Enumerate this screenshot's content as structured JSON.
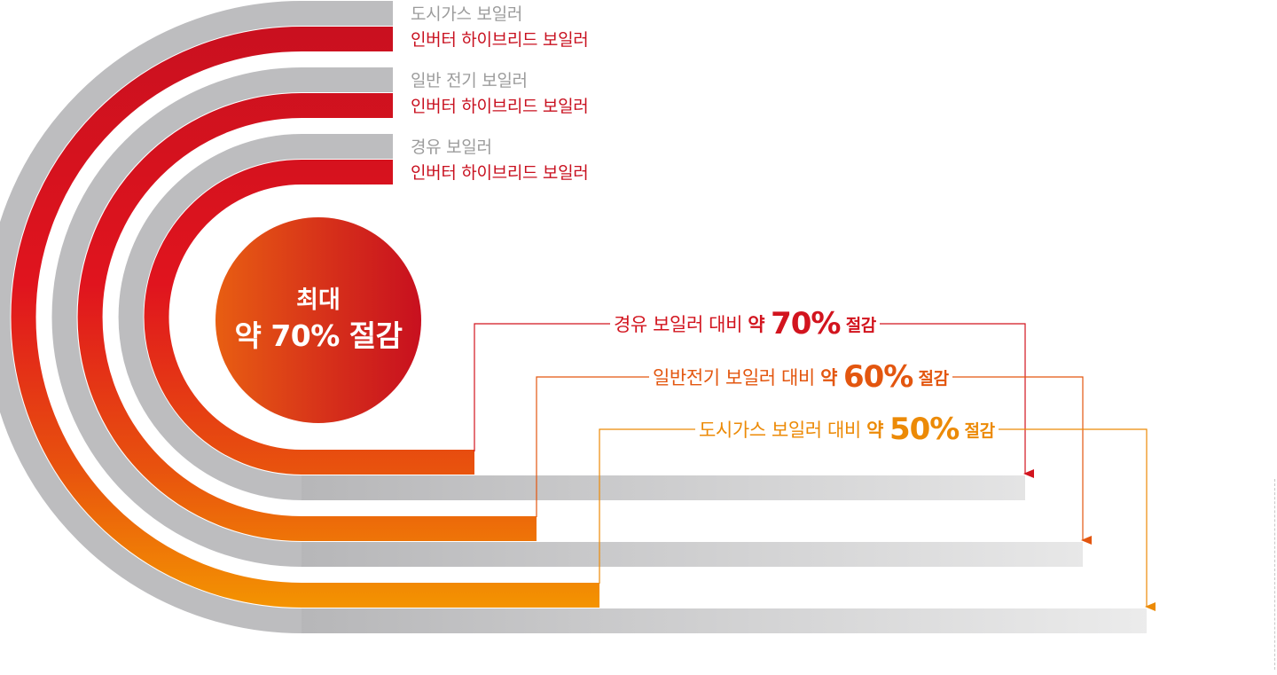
{
  "legend": [
    {
      "conventional": "도시가스 보일러",
      "hybrid": "인버터 하이브리드 보일러"
    },
    {
      "conventional": "일반 전기 보일러",
      "hybrid": "인버터 하이브리드 보일러"
    },
    {
      "conventional": "경유 보일러",
      "hybrid": "인버터 하이브리드 보일러"
    }
  ],
  "badge": {
    "line1": "최대",
    "line2": "약 70% 절감"
  },
  "callouts": [
    {
      "prefix": "경유 보일러 대비 ",
      "yak": "약 ",
      "pct": "70%",
      "suffix": " 절감"
    },
    {
      "prefix": "일반전기 보일러 대비 ",
      "yak": "약 ",
      "pct": "60%",
      "suffix": " 절감"
    },
    {
      "prefix": "도시가스 보일러 대비 ",
      "yak": "약 ",
      "pct": "50%",
      "suffix": " 절감"
    }
  ],
  "colors": {
    "gray_track": "#bdbdbf",
    "hybrid_red": "#c8101f",
    "callout_70": "#d2141e",
    "callout_60": "#e3560f",
    "callout_50": "#ec8a06"
  },
  "chart_data": {
    "type": "bar",
    "categories": [
      "경유 보일러",
      "일반 전기 보일러",
      "도시가스 보일러"
    ],
    "series": [
      {
        "name": "인버터 하이브리드 보일러",
        "values": [
          30,
          40,
          50
        ]
      }
    ],
    "savings_percent": [
      70,
      60,
      50
    ],
    "ylim": [
      0,
      100
    ]
  }
}
